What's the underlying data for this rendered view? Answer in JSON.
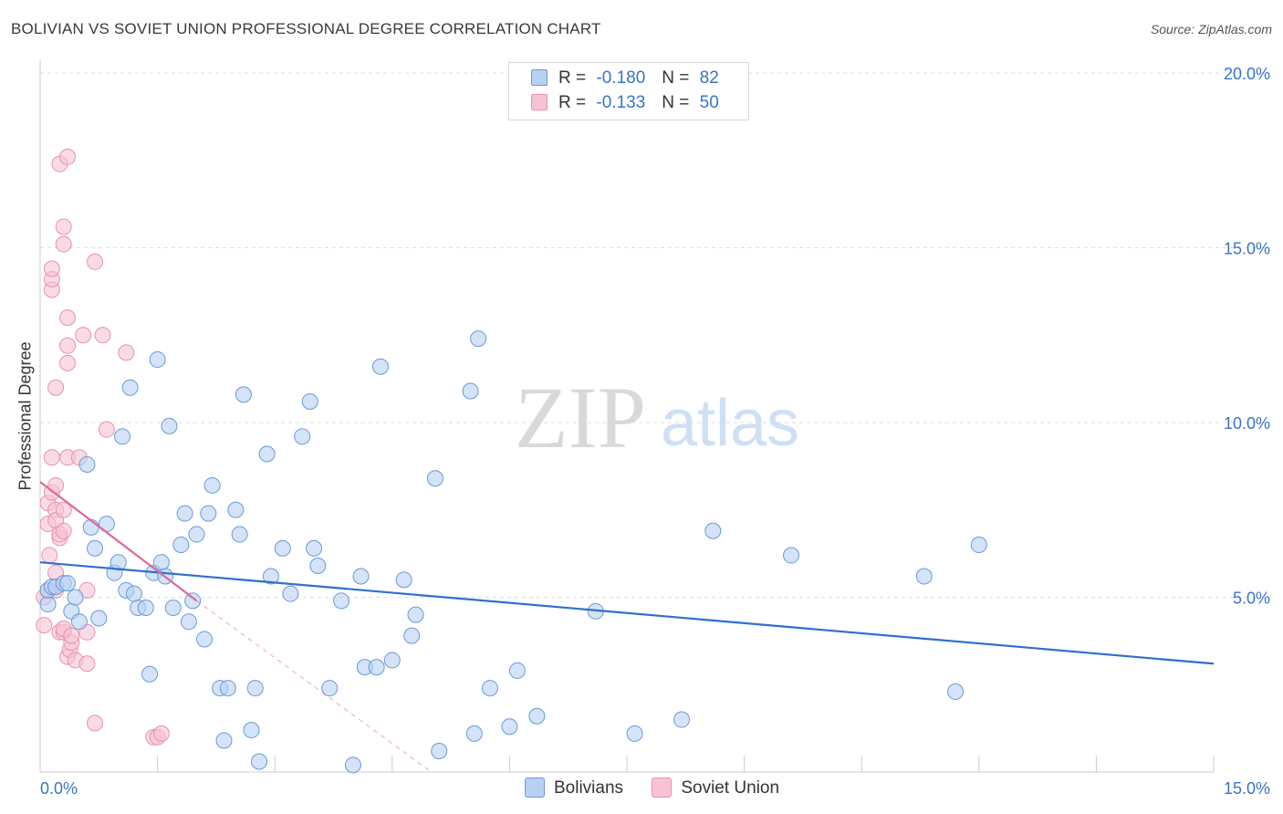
{
  "header": {
    "title": "BOLIVIAN VS SOVIET UNION PROFESSIONAL DEGREE CORRELATION CHART",
    "source": "Source: ZipAtlas.com"
  },
  "watermark": {
    "zip": "ZIP",
    "atlas": "atlas"
  },
  "legend": {
    "rows": [
      {
        "r_label": "R =",
        "r_value": "-0.180",
        "n_label": "N =",
        "n_value": "82"
      },
      {
        "r_label": "R =",
        "r_value": "-0.133",
        "n_label": "N =",
        "n_value": "50"
      }
    ]
  },
  "bottom_legend": {
    "series1": "Bolivians",
    "series2": "Soviet Union"
  },
  "colors": {
    "blue_fill": "#b8d0f3",
    "blue_stroke": "#6b9ad8",
    "blue_line": "#2f6fcf",
    "pink_fill": "#f7c3d3",
    "pink_stroke": "#e892ae",
    "pink_line": "#e0679a",
    "tick_text": "#3a73c8",
    "grid": "#dddddd"
  },
  "chart_data": {
    "type": "scatter",
    "title": "BOLIVIAN VS SOVIET UNION PROFESSIONAL DEGREE CORRELATION CHART",
    "xlabel": "",
    "ylabel": "Professional Degree",
    "xlim": [
      0,
      15
    ],
    "ylim": [
      0,
      20
    ],
    "x_tick_labels": [
      "0.0%",
      "15.0%"
    ],
    "y_ticks": [
      5,
      10,
      15,
      20
    ],
    "y_tick_labels": [
      "5.0%",
      "10.0%",
      "15.0%",
      "20.0%"
    ],
    "series": [
      {
        "name": "Bolivians",
        "r": -0.18,
        "n": 82,
        "trend": {
          "x": [
            0,
            15
          ],
          "y": [
            6.0,
            3.1
          ]
        },
        "points": [
          [
            0.1,
            4.8
          ],
          [
            0.1,
            5.2
          ],
          [
            0.15,
            5.3
          ],
          [
            0.2,
            5.3
          ],
          [
            0.3,
            5.4
          ],
          [
            0.35,
            5.4
          ],
          [
            0.4,
            4.6
          ],
          [
            0.45,
            5.0
          ],
          [
            0.5,
            4.3
          ],
          [
            0.6,
            8.8
          ],
          [
            0.65,
            7.0
          ],
          [
            0.7,
            6.4
          ],
          [
            0.75,
            4.4
          ],
          [
            0.85,
            7.1
          ],
          [
            0.95,
            5.7
          ],
          [
            1.0,
            6.0
          ],
          [
            1.05,
            9.6
          ],
          [
            1.1,
            5.2
          ],
          [
            1.15,
            11.0
          ],
          [
            1.2,
            5.1
          ],
          [
            1.25,
            4.7
          ],
          [
            1.35,
            4.7
          ],
          [
            1.4,
            2.8
          ],
          [
            1.45,
            5.7
          ],
          [
            1.5,
            11.8
          ],
          [
            1.55,
            6.0
          ],
          [
            1.6,
            5.6
          ],
          [
            1.65,
            9.9
          ],
          [
            1.7,
            4.7
          ],
          [
            1.8,
            6.5
          ],
          [
            1.85,
            7.4
          ],
          [
            1.9,
            4.3
          ],
          [
            1.95,
            4.9
          ],
          [
            2.0,
            6.8
          ],
          [
            2.1,
            3.8
          ],
          [
            2.15,
            7.4
          ],
          [
            2.2,
            8.2
          ],
          [
            2.3,
            2.4
          ],
          [
            2.35,
            0.9
          ],
          [
            2.4,
            2.4
          ],
          [
            2.5,
            7.5
          ],
          [
            2.55,
            6.8
          ],
          [
            2.6,
            10.8
          ],
          [
            2.7,
            1.2
          ],
          [
            2.75,
            2.4
          ],
          [
            2.8,
            0.3
          ],
          [
            2.9,
            9.1
          ],
          [
            2.95,
            5.6
          ],
          [
            3.1,
            6.4
          ],
          [
            3.2,
            5.1
          ],
          [
            3.35,
            9.6
          ],
          [
            3.45,
            10.6
          ],
          [
            3.5,
            6.4
          ],
          [
            3.55,
            5.9
          ],
          [
            3.7,
            2.4
          ],
          [
            3.85,
            4.9
          ],
          [
            4.0,
            0.2
          ],
          [
            4.1,
            5.6
          ],
          [
            4.15,
            3.0
          ],
          [
            4.3,
            3.0
          ],
          [
            4.35,
            11.6
          ],
          [
            4.5,
            3.2
          ],
          [
            4.65,
            5.5
          ],
          [
            4.75,
            3.9
          ],
          [
            4.8,
            4.5
          ],
          [
            5.05,
            8.4
          ],
          [
            5.1,
            0.6
          ],
          [
            5.5,
            10.9
          ],
          [
            5.55,
            1.1
          ],
          [
            5.6,
            12.4
          ],
          [
            5.75,
            2.4
          ],
          [
            6.0,
            1.3
          ],
          [
            6.1,
            2.9
          ],
          [
            6.35,
            1.6
          ],
          [
            7.1,
            4.6
          ],
          [
            7.6,
            1.1
          ],
          [
            8.2,
            1.5
          ],
          [
            8.6,
            6.9
          ],
          [
            9.6,
            6.2
          ],
          [
            11.3,
            5.6
          ],
          [
            11.7,
            2.3
          ],
          [
            12.0,
            6.5
          ]
        ]
      },
      {
        "name": "Soviet Union",
        "r": -0.133,
        "n": 50,
        "trend": {
          "x": [
            0,
            2.0
          ],
          "y": [
            8.3,
            4.9
          ]
        },
        "trend_extended": {
          "x": [
            2.0,
            5.0
          ],
          "y": [
            4.9,
            0
          ]
        },
        "points": [
          [
            0.05,
            4.2
          ],
          [
            0.05,
            5.0
          ],
          [
            0.1,
            5.2
          ],
          [
            0.1,
            7.1
          ],
          [
            0.1,
            7.7
          ],
          [
            0.12,
            6.2
          ],
          [
            0.15,
            8.0
          ],
          [
            0.15,
            9.0
          ],
          [
            0.15,
            13.8
          ],
          [
            0.15,
            14.1
          ],
          [
            0.15,
            14.4
          ],
          [
            0.2,
            5.2
          ],
          [
            0.2,
            5.7
          ],
          [
            0.2,
            8.2
          ],
          [
            0.2,
            11.0
          ],
          [
            0.2,
            7.5
          ],
          [
            0.2,
            7.2
          ],
          [
            0.25,
            4.0
          ],
          [
            0.25,
            6.7
          ],
          [
            0.25,
            6.8
          ],
          [
            0.25,
            17.4
          ],
          [
            0.3,
            7.5
          ],
          [
            0.3,
            6.9
          ],
          [
            0.3,
            4.0
          ],
          [
            0.3,
            4.1
          ],
          [
            0.3,
            15.1
          ],
          [
            0.3,
            15.6
          ],
          [
            0.35,
            9.0
          ],
          [
            0.35,
            11.7
          ],
          [
            0.35,
            12.2
          ],
          [
            0.35,
            13.0
          ],
          [
            0.35,
            17.6
          ],
          [
            0.35,
            3.3
          ],
          [
            0.38,
            3.5
          ],
          [
            0.4,
            3.7
          ],
          [
            0.4,
            3.9
          ],
          [
            0.45,
            3.2
          ],
          [
            0.5,
            9.0
          ],
          [
            0.55,
            12.5
          ],
          [
            0.6,
            4.0
          ],
          [
            0.6,
            5.2
          ],
          [
            0.6,
            3.1
          ],
          [
            0.7,
            14.6
          ],
          [
            0.7,
            1.4
          ],
          [
            0.8,
            12.5
          ],
          [
            0.85,
            9.8
          ],
          [
            1.1,
            12.0
          ],
          [
            1.45,
            1.0
          ],
          [
            1.5,
            1.0
          ],
          [
            1.55,
            1.1
          ]
        ]
      }
    ]
  }
}
